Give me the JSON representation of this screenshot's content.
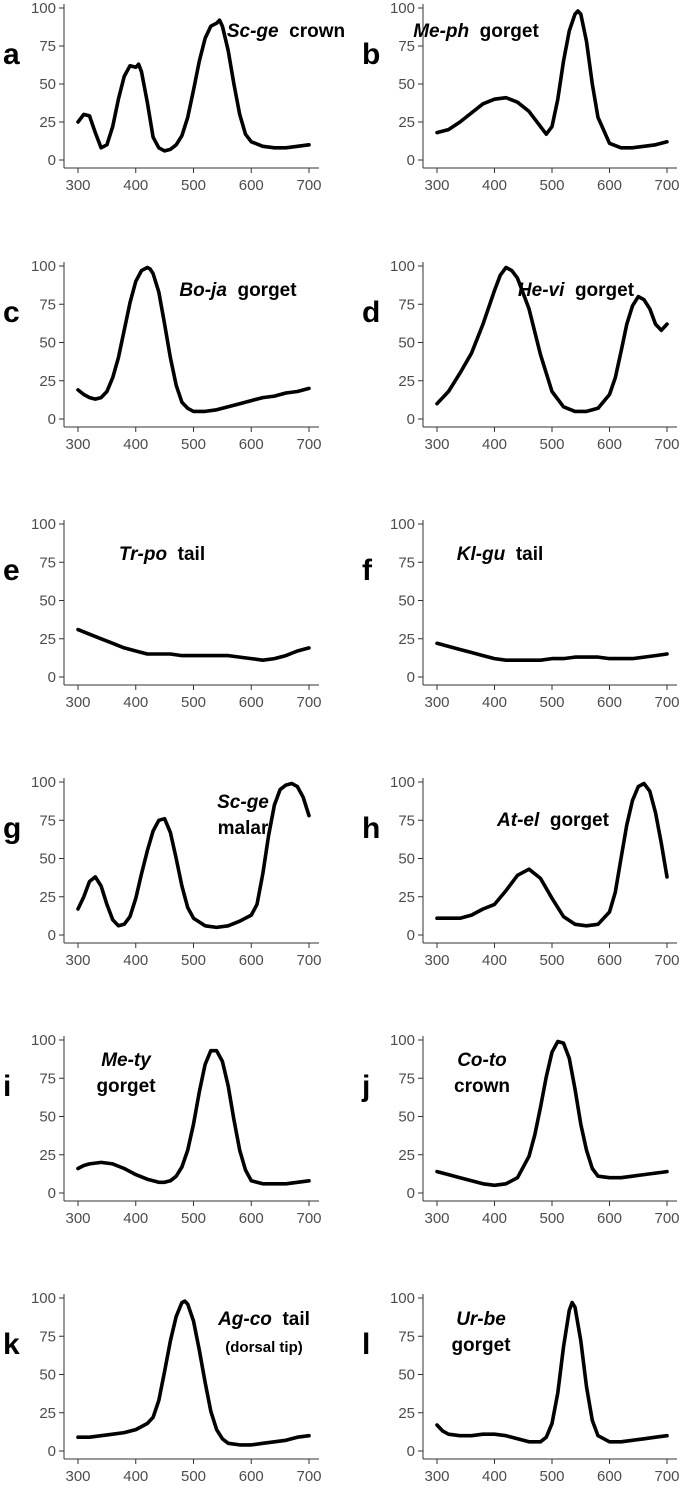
{
  "chart_data": [
    {
      "type": "line",
      "letter": "a",
      "title": {
        "species": "Sc-ge",
        "part": "crown",
        "sub": ""
      },
      "x": [
        300,
        310,
        320,
        330,
        340,
        350,
        360,
        370,
        380,
        390,
        400,
        405,
        410,
        420,
        430,
        440,
        450,
        460,
        470,
        480,
        490,
        500,
        510,
        520,
        530,
        540,
        545,
        550,
        560,
        570,
        580,
        590,
        600,
        620,
        640,
        660,
        680,
        700
      ],
      "values": [
        25,
        30,
        29,
        18,
        8,
        10,
        22,
        40,
        55,
        62,
        61,
        63,
        58,
        38,
        15,
        8,
        6,
        7,
        10,
        16,
        28,
        46,
        65,
        80,
        88,
        90,
        92,
        88,
        72,
        50,
        30,
        17,
        12,
        9,
        8,
        8,
        9,
        10
      ],
      "xlim": [
        300,
        700
      ],
      "ylim": [
        0,
        100
      ],
      "xticks": [
        300,
        400,
        500,
        600,
        700
      ],
      "yticks": [
        0,
        25,
        50,
        75,
        100
      ],
      "grid": false
    },
    {
      "type": "line",
      "letter": "b",
      "title": {
        "species": "Me-ph",
        "part": "gorget",
        "sub": ""
      },
      "x": [
        300,
        320,
        340,
        360,
        380,
        400,
        420,
        440,
        460,
        480,
        490,
        500,
        510,
        520,
        530,
        540,
        545,
        550,
        560,
        570,
        580,
        600,
        620,
        640,
        660,
        680,
        700
      ],
      "values": [
        18,
        20,
        25,
        31,
        37,
        40,
        41,
        38,
        32,
        22,
        17,
        22,
        40,
        65,
        85,
        96,
        98,
        96,
        78,
        50,
        28,
        11,
        8,
        8,
        9,
        10,
        12
      ],
      "xlim": [
        300,
        700
      ],
      "ylim": [
        0,
        100
      ],
      "xticks": [
        300,
        400,
        500,
        600,
        700
      ],
      "yticks": [
        0,
        25,
        50,
        75,
        100
      ],
      "grid": false
    },
    {
      "type": "line",
      "letter": "c",
      "title": {
        "species": "Bo-ja",
        "part": "gorget",
        "sub": ""
      },
      "x": [
        300,
        310,
        320,
        330,
        340,
        350,
        360,
        370,
        380,
        390,
        400,
        410,
        420,
        425,
        430,
        440,
        450,
        460,
        470,
        480,
        490,
        500,
        510,
        520,
        540,
        560,
        580,
        600,
        620,
        640,
        660,
        680,
        700
      ],
      "values": [
        19,
        16,
        14,
        13,
        14,
        18,
        27,
        40,
        58,
        76,
        90,
        97,
        99,
        98,
        95,
        83,
        62,
        40,
        22,
        11,
        7,
        5,
        5,
        5,
        6,
        8,
        10,
        12,
        14,
        15,
        17,
        18,
        20
      ],
      "xlim": [
        300,
        700
      ],
      "ylim": [
        0,
        100
      ],
      "xticks": [
        300,
        400,
        500,
        600,
        700
      ],
      "yticks": [
        0,
        25,
        50,
        75,
        100
      ],
      "grid": false
    },
    {
      "type": "line",
      "letter": "d",
      "title": {
        "species": "He-vi",
        "part": "gorget",
        "sub": ""
      },
      "x": [
        300,
        320,
        340,
        360,
        380,
        400,
        410,
        420,
        430,
        440,
        460,
        480,
        500,
        520,
        540,
        560,
        580,
        600,
        610,
        620,
        630,
        640,
        650,
        660,
        670,
        680,
        690,
        700
      ],
      "values": [
        10,
        18,
        30,
        43,
        62,
        84,
        94,
        99,
        97,
        92,
        72,
        42,
        18,
        8,
        5,
        5,
        7,
        16,
        27,
        44,
        62,
        74,
        80,
        78,
        72,
        62,
        58,
        62
      ],
      "xlim": [
        300,
        700
      ],
      "ylim": [
        0,
        100
      ],
      "xticks": [
        300,
        400,
        500,
        600,
        700
      ],
      "yticks": [
        0,
        25,
        50,
        75,
        100
      ],
      "grid": false
    },
    {
      "type": "line",
      "letter": "e",
      "title": {
        "species": "Tr-po",
        "part": "tail",
        "sub": ""
      },
      "x": [
        300,
        320,
        340,
        360,
        380,
        400,
        420,
        440,
        460,
        480,
        500,
        520,
        540,
        560,
        580,
        600,
        620,
        640,
        660,
        680,
        700
      ],
      "values": [
        31,
        28,
        25,
        22,
        19,
        17,
        15,
        15,
        15,
        14,
        14,
        14,
        14,
        14,
        13,
        12,
        11,
        12,
        14,
        17,
        19
      ],
      "xlim": [
        300,
        700
      ],
      "ylim": [
        0,
        100
      ],
      "xticks": [
        300,
        400,
        500,
        600,
        700
      ],
      "yticks": [
        0,
        25,
        50,
        75,
        100
      ],
      "grid": false
    },
    {
      "type": "line",
      "letter": "f",
      "title": {
        "species": "Kl-gu",
        "part": "tail",
        "sub": ""
      },
      "x": [
        300,
        320,
        340,
        360,
        380,
        400,
        420,
        440,
        460,
        480,
        500,
        520,
        540,
        560,
        580,
        600,
        620,
        640,
        660,
        680,
        700
      ],
      "values": [
        22,
        20,
        18,
        16,
        14,
        12,
        11,
        11,
        11,
        11,
        12,
        12,
        13,
        13,
        13,
        12,
        12,
        12,
        13,
        14,
        15
      ],
      "xlim": [
        300,
        700
      ],
      "ylim": [
        0,
        100
      ],
      "xticks": [
        300,
        400,
        500,
        600,
        700
      ],
      "yticks": [
        0,
        25,
        50,
        75,
        100
      ],
      "grid": false
    },
    {
      "type": "line",
      "letter": "g",
      "title": {
        "species": "Sc-ge",
        "part": "",
        "sub": "malar"
      },
      "x": [
        300,
        310,
        320,
        330,
        340,
        350,
        360,
        370,
        380,
        390,
        400,
        410,
        420,
        430,
        440,
        450,
        460,
        470,
        480,
        490,
        500,
        520,
        540,
        560,
        580,
        600,
        610,
        620,
        630,
        640,
        650,
        660,
        670,
        680,
        690,
        700
      ],
      "values": [
        17,
        25,
        35,
        38,
        32,
        20,
        10,
        6,
        7,
        12,
        24,
        40,
        55,
        68,
        75,
        76,
        67,
        50,
        32,
        18,
        11,
        6,
        5,
        6,
        9,
        13,
        20,
        40,
        65,
        85,
        95,
        98,
        99,
        97,
        90,
        78
      ],
      "xlim": [
        300,
        700
      ],
      "ylim": [
        0,
        100
      ],
      "xticks": [
        300,
        400,
        500,
        600,
        700
      ],
      "yticks": [
        0,
        25,
        50,
        75,
        100
      ],
      "grid": false
    },
    {
      "type": "line",
      "letter": "h",
      "title": {
        "species": "At-el",
        "part": "gorget",
        "sub": ""
      },
      "x": [
        300,
        320,
        340,
        360,
        380,
        400,
        420,
        440,
        460,
        480,
        500,
        520,
        540,
        560,
        580,
        600,
        610,
        620,
        630,
        640,
        650,
        660,
        670,
        680,
        690,
        700
      ],
      "values": [
        11,
        11,
        11,
        13,
        17,
        20,
        29,
        39,
        43,
        37,
        24,
        12,
        7,
        6,
        7,
        15,
        28,
        50,
        72,
        88,
        97,
        99,
        94,
        80,
        60,
        38
      ],
      "xlim": [
        300,
        700
      ],
      "ylim": [
        0,
        100
      ],
      "xticks": [
        300,
        400,
        500,
        600,
        700
      ],
      "yticks": [
        0,
        25,
        50,
        75,
        100
      ],
      "grid": false
    },
    {
      "type": "line",
      "letter": "i",
      "title": {
        "species": "Me-ty",
        "part": "",
        "sub": "gorget"
      },
      "x": [
        300,
        310,
        320,
        340,
        360,
        380,
        400,
        420,
        440,
        450,
        460,
        470,
        480,
        490,
        500,
        510,
        520,
        530,
        540,
        550,
        560,
        570,
        580,
        590,
        600,
        620,
        640,
        660,
        680,
        700
      ],
      "values": [
        16,
        18,
        19,
        20,
        19,
        16,
        12,
        9,
        7,
        7,
        8,
        11,
        17,
        28,
        45,
        66,
        84,
        93,
        93,
        86,
        70,
        48,
        28,
        15,
        8,
        6,
        6,
        6,
        7,
        8
      ],
      "xlim": [
        300,
        700
      ],
      "ylim": [
        0,
        100
      ],
      "xticks": [
        300,
        400,
        500,
        600,
        700
      ],
      "yticks": [
        0,
        25,
        50,
        75,
        100
      ],
      "grid": false
    },
    {
      "type": "line",
      "letter": "j",
      "title": {
        "species": "Co-to",
        "part": "",
        "sub": "crown"
      },
      "x": [
        300,
        320,
        340,
        360,
        380,
        400,
        420,
        440,
        460,
        470,
        480,
        490,
        500,
        510,
        520,
        530,
        540,
        550,
        560,
        570,
        580,
        600,
        620,
        640,
        660,
        680,
        700
      ],
      "values": [
        14,
        12,
        10,
        8,
        6,
        5,
        6,
        10,
        24,
        38,
        56,
        76,
        92,
        99,
        98,
        88,
        68,
        45,
        28,
        16,
        11,
        10,
        10,
        11,
        12,
        13,
        14
      ],
      "xlim": [
        300,
        700
      ],
      "ylim": [
        0,
        100
      ],
      "xticks": [
        300,
        400,
        500,
        600,
        700
      ],
      "yticks": [
        0,
        25,
        50,
        75,
        100
      ],
      "grid": false
    },
    {
      "type": "line",
      "letter": "k",
      "title": {
        "species": "Ag-co",
        "part": "tail",
        "sub": "(dorsal tip)"
      },
      "x": [
        300,
        320,
        340,
        360,
        380,
        400,
        420,
        430,
        440,
        450,
        460,
        470,
        480,
        485,
        490,
        500,
        510,
        520,
        530,
        540,
        550,
        560,
        580,
        600,
        620,
        640,
        660,
        680,
        700
      ],
      "values": [
        9,
        9,
        10,
        11,
        12,
        14,
        18,
        22,
        33,
        52,
        72,
        88,
        97,
        98,
        96,
        85,
        66,
        45,
        26,
        14,
        8,
        5,
        4,
        4,
        5,
        6,
        7,
        9,
        10
      ],
      "xlim": [
        300,
        700
      ],
      "ylim": [
        0,
        100
      ],
      "xticks": [
        300,
        400,
        500,
        600,
        700
      ],
      "yticks": [
        0,
        25,
        50,
        75,
        100
      ],
      "grid": false
    },
    {
      "type": "line",
      "letter": "l",
      "title": {
        "species": "Ur-be",
        "part": "",
        "sub": "gorget"
      },
      "x": [
        300,
        310,
        320,
        340,
        360,
        380,
        400,
        420,
        440,
        460,
        480,
        490,
        500,
        510,
        520,
        530,
        535,
        540,
        550,
        560,
        570,
        580,
        600,
        620,
        640,
        660,
        680,
        700
      ],
      "values": [
        17,
        13,
        11,
        10,
        10,
        11,
        11,
        10,
        8,
        6,
        6,
        9,
        18,
        38,
        68,
        92,
        97,
        94,
        72,
        42,
        20,
        10,
        6,
        6,
        7,
        8,
        9,
        10
      ],
      "xlim": [
        300,
        700
      ],
      "ylim": [
        0,
        100
      ],
      "xticks": [
        300,
        400,
        500,
        600,
        700
      ],
      "yticks": [
        0,
        25,
        50,
        75,
        100
      ],
      "grid": false
    }
  ]
}
